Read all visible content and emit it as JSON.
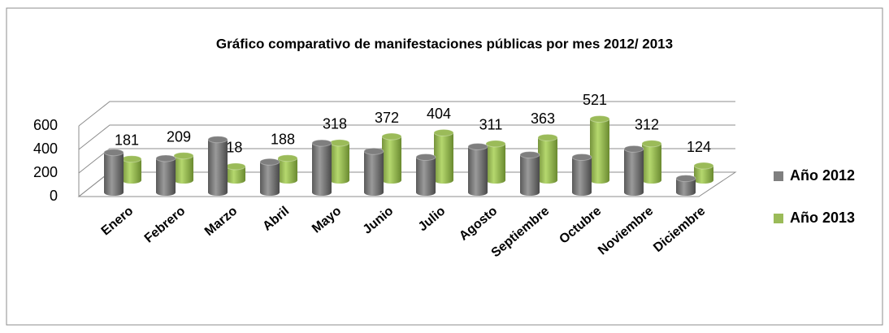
{
  "chart_data": {
    "type": "bar3d",
    "title": "Gráfico comparativo de manifestaciones públicas por mes 2012/ 2013",
    "categories": [
      "Enero",
      "Febrero",
      "Marzo",
      "Abril",
      "Mayo",
      "Junio",
      "Julio",
      "Agosto",
      "Septiembre",
      "Octubre",
      "Noviembre",
      "Diciembre"
    ],
    "series": [
      {
        "name": "Año 2012",
        "color": "#7f7f7f",
        "values": [
          340,
          290,
          450,
          260,
          420,
          350,
          300,
          390,
          320,
          300,
          370,
          120
        ]
      },
      {
        "name": "Año 2013",
        "color": "#9bbb59",
        "values": [
          181,
          209,
          118,
          188,
          318,
          372,
          404,
          311,
          363,
          521,
          312,
          124
        ],
        "show_labels": true
      }
    ],
    "ylim": [
      0,
      600
    ],
    "yticks": [
      0,
      200,
      400,
      600
    ],
    "grid": true,
    "legend": "right"
  }
}
